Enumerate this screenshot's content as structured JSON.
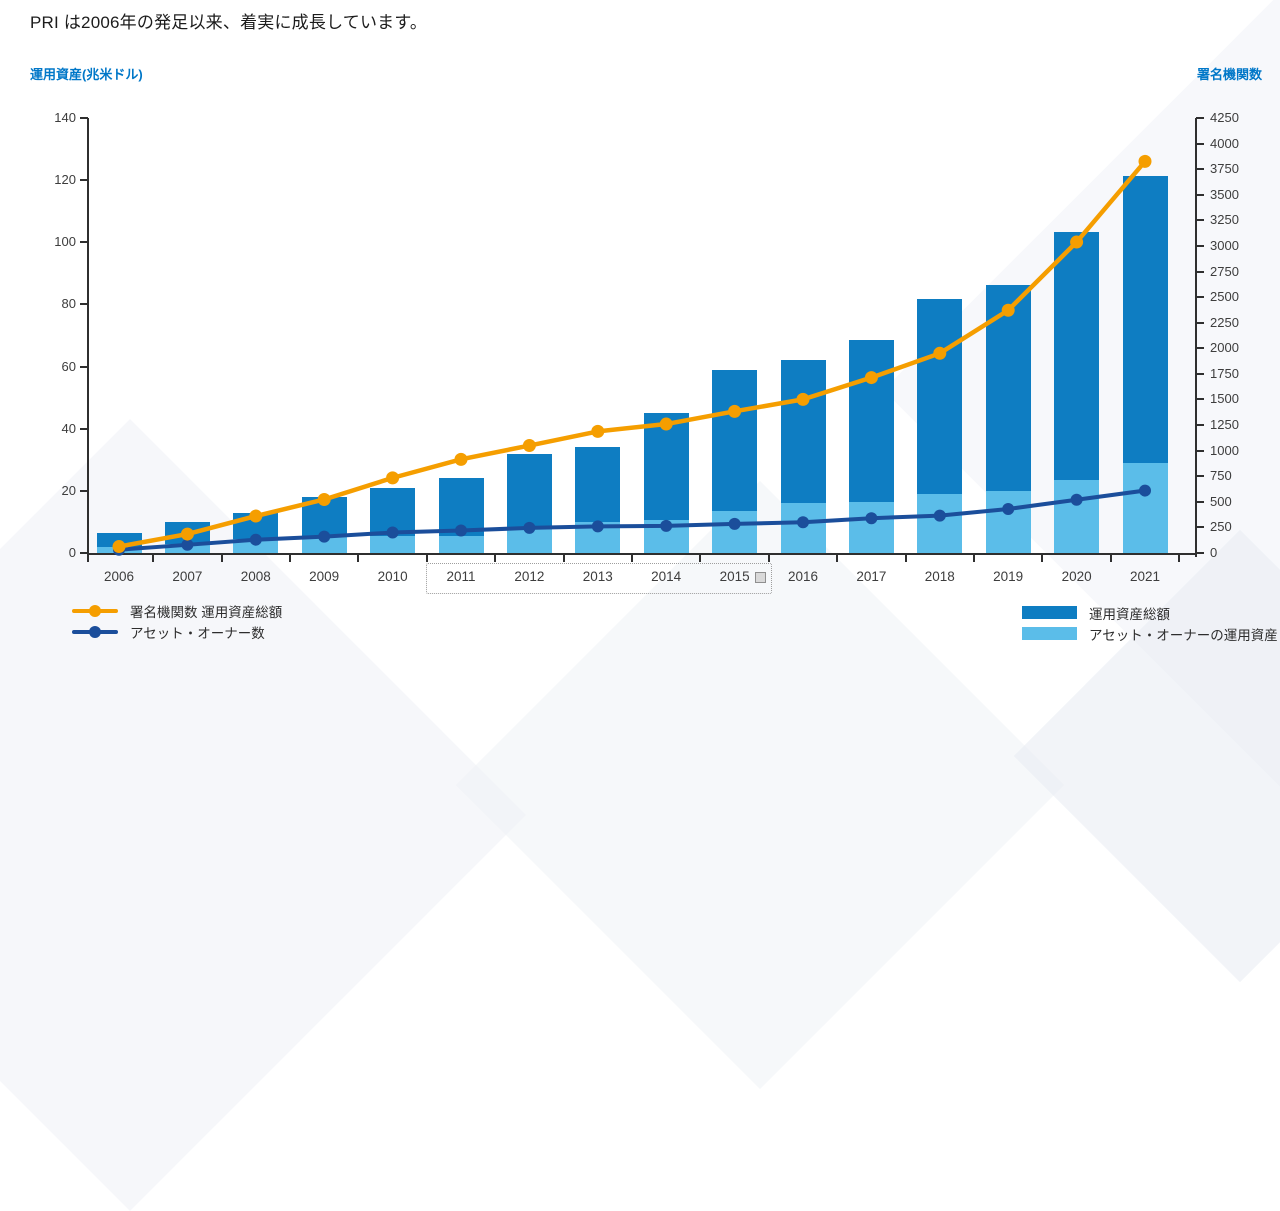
{
  "page": {
    "title": "PRI は2006年の発足以来、着実に成長しています。"
  },
  "colors": {
    "total_aum_bar": "#0e7dc2",
    "asset_owner_aum_bar": "#5bbde9",
    "signatories_line": "#f59e00",
    "asset_owners_line": "#1b4e9b",
    "axis_heading_blue": "#0077c8",
    "axis_text": "#3d3d3d",
    "axis_line": "#2f2f2f"
  },
  "chart_data": {
    "type": "combo-stacked-bar-and-lines-dual-axis",
    "title": "",
    "left_axis": {
      "label": "運用資産(兆米ドル)",
      "min": 0,
      "max": 140,
      "tick_step": 20,
      "ticks": [
        0,
        20,
        40,
        60,
        80,
        100,
        120,
        140
      ]
    },
    "right_axis": {
      "label": "署名機関数",
      "min": 0,
      "max": 4250,
      "tick_step": 250,
      "ticks": [
        0,
        250,
        500,
        750,
        1000,
        1250,
        1500,
        1750,
        2000,
        2250,
        2500,
        2750,
        3000,
        3250,
        3500,
        3750,
        4000,
        4250
      ]
    },
    "categories": [
      "2006",
      "2007",
      "2008",
      "2009",
      "2010",
      "2011",
      "2012",
      "2013",
      "2014",
      "2015",
      "2016",
      "2017",
      "2018",
      "2019",
      "2020",
      "2021"
    ],
    "series": [
      {
        "name": "運用資産総額",
        "role": "bar-total",
        "axis": "left",
        "color": "#0e7dc2",
        "values": [
          6.5,
          10,
          13,
          18,
          21,
          24,
          32,
          34,
          45,
          59,
          62,
          68.4,
          81.7,
          86.3,
          103.4,
          121.3
        ]
      },
      {
        "name": "アセット・オーナーの運用資産",
        "role": "bar-bottom-segment",
        "axis": "left",
        "color": "#5bbde9",
        "values": [
          2,
          3,
          4.5,
          5.5,
          5.5,
          5.5,
          8,
          10,
          10.5,
          13.5,
          16,
          16.5,
          19,
          20,
          23.5,
          29
        ]
      },
      {
        "name": "署名機関数 運用資産総額",
        "role": "line",
        "axis": "right",
        "color": "#f59e00",
        "values": [
          63,
          185,
          361,
          523,
          734,
          915,
          1050,
          1188,
          1260,
          1384,
          1501,
          1714,
          1951,
          2372,
          3038,
          3826
        ]
      },
      {
        "name": "アセット・オーナー数",
        "role": "line",
        "axis": "right",
        "color": "#1b4e9b",
        "values": [
          32,
          80,
          130,
          160,
          200,
          220,
          245,
          260,
          265,
          285,
          300,
          340,
          365,
          430,
          520,
          610
        ]
      }
    ],
    "legend_left": [
      {
        "label": "署名機関数 運用資産総額",
        "marker": "line-dot",
        "color": "#f59e00"
      },
      {
        "label": "アセット・オーナー数",
        "marker": "line-dot",
        "color": "#1b4e9b"
      }
    ],
    "legend_right": [
      {
        "label": "運用資産総額",
        "marker": "swatch",
        "color": "#0e7dc2"
      },
      {
        "label": "アセット・オーナーの運用資産",
        "marker": "swatch",
        "color": "#5bbde9"
      }
    ],
    "x_label_selection": {
      "from": "2011",
      "to": "2015"
    },
    "grid": false,
    "legend_position": "bottom"
  }
}
